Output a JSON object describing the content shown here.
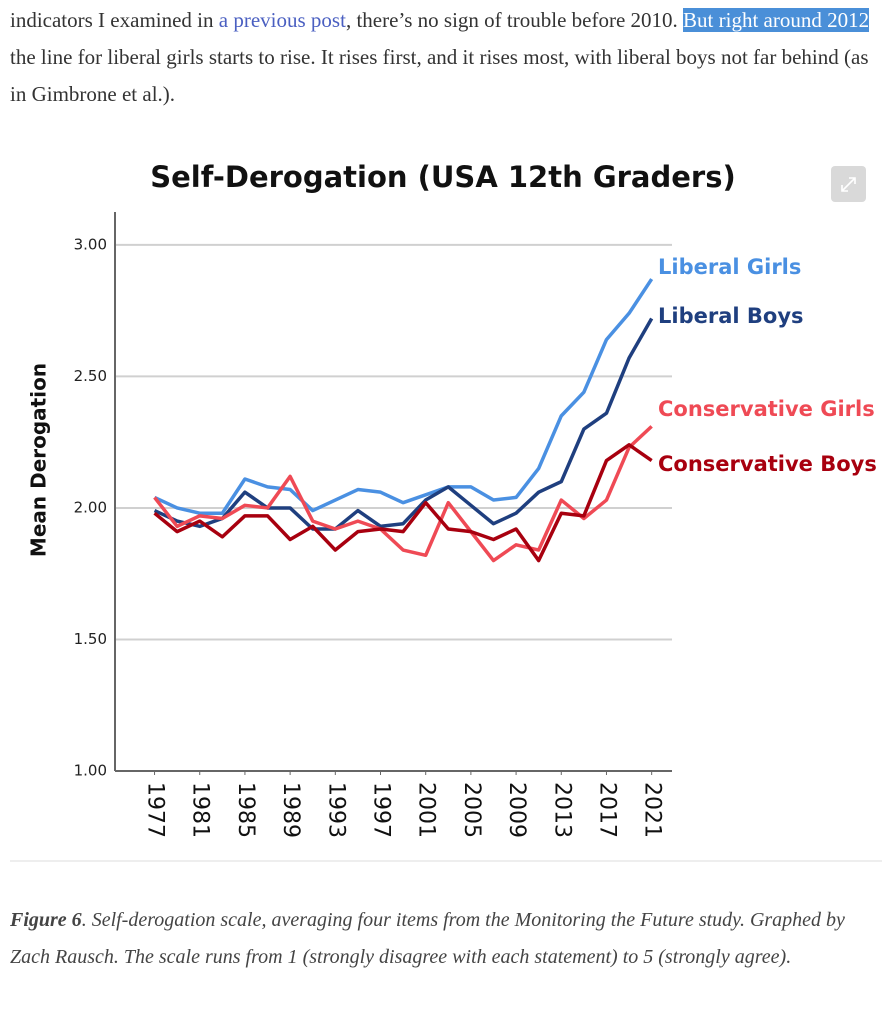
{
  "text": {
    "parts": [
      "indicators I examined in ",
      "a previous post",
      ", there’s no sign of trouble before 2010. ",
      "But right around 2012",
      " the line for liberal girls starts to rise. It rises first, and it rises most, with liberal boys not far behind (as in Gimbrone et al.)."
    ]
  },
  "caption": {
    "label": "Figure 6",
    "text": ". Self-derogation scale, averaging four items from the Monitoring the Future study. Graphed by Zach Rausch. The scale runs from 1 (strongly disagree with each statement) to 5 (strongly agree)."
  },
  "chart_data": {
    "type": "line",
    "title": "Self-Derogation (USA 12th Graders)",
    "y_label": "Mean Derogation",
    "x": [
      1977,
      1979,
      1981,
      1983,
      1985,
      1987,
      1989,
      1991,
      1993,
      1995,
      1997,
      1999,
      2001,
      2003,
      2005,
      2007,
      2009,
      2011,
      2013,
      2015,
      2017,
      2019,
      2021
    ],
    "xlim": [
      1973.5,
      2022.8
    ],
    "xticks": [
      1977,
      1981,
      1985,
      1989,
      1993,
      1997,
      2001,
      2005,
      2009,
      2013,
      2017,
      2021
    ],
    "ylim": [
      1,
      3.125
    ],
    "yticks": [
      {
        "value": 1,
        "label": "1.00"
      },
      {
        "value": 1.5,
        "label": "1.50"
      },
      {
        "value": 2,
        "label": "2.00"
      },
      {
        "value": 2.5,
        "label": "2.50"
      },
      {
        "value": 3,
        "label": "3.00"
      }
    ],
    "grid": true,
    "series": [
      {
        "name": "Liberal Girls",
        "color": "#4a90e2",
        "values": [
          2.04,
          2.0,
          1.98,
          1.98,
          2.11,
          2.08,
          2.07,
          1.99,
          2.03,
          2.07,
          2.06,
          2.02,
          2.05,
          2.08,
          2.08,
          2.03,
          2.04,
          2.15,
          2.35,
          2.44,
          2.64,
          2.74,
          2.87
        ]
      },
      {
        "name": "Liberal Boys",
        "color": "#1f3f7f",
        "values": [
          1.99,
          1.95,
          1.93,
          1.96,
          2.06,
          2.0,
          2.0,
          1.92,
          1.92,
          1.99,
          1.93,
          1.94,
          2.03,
          2.08,
          2.01,
          1.94,
          1.98,
          2.06,
          2.1,
          2.3,
          2.36,
          2.57,
          2.72
        ]
      },
      {
        "name": "Conservative Girls",
        "color": "#ef4a55",
        "values": [
          2.04,
          1.93,
          1.97,
          1.96,
          2.01,
          2.0,
          2.12,
          1.95,
          1.92,
          1.95,
          1.92,
          1.84,
          1.82,
          2.02,
          1.91,
          1.8,
          1.86,
          1.84,
          2.03,
          1.96,
          2.03,
          2.23,
          2.31
        ]
      },
      {
        "name": "Conservative Boys",
        "color": "#a8000f",
        "values": [
          1.98,
          1.91,
          1.95,
          1.89,
          1.97,
          1.97,
          1.88,
          1.93,
          1.84,
          1.91,
          1.92,
          1.91,
          2.02,
          1.92,
          1.91,
          1.88,
          1.92,
          1.8,
          1.98,
          1.97,
          2.18,
          2.24,
          2.18
        ]
      }
    ]
  }
}
